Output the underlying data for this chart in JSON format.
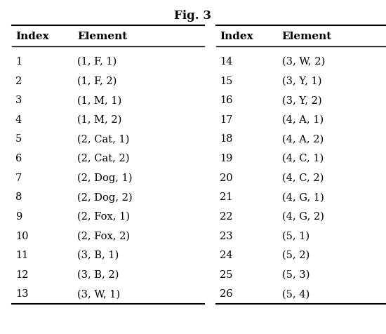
{
  "title": "Fig. 3",
  "col_headers": [
    "Index",
    "Element",
    "Index",
    "Element"
  ],
  "left_data": [
    [
      "1",
      "(1, F, 1)"
    ],
    [
      "2",
      "(1, F, 2)"
    ],
    [
      "3",
      "(1, M, 1)"
    ],
    [
      "4",
      "(1, M, 2)"
    ],
    [
      "5",
      "(2, Cat, 1)"
    ],
    [
      "6",
      "(2, Cat, 2)"
    ],
    [
      "7",
      "(2, Dog, 1)"
    ],
    [
      "8",
      "(2, Dog, 2)"
    ],
    [
      "9",
      "(2, Fox, 1)"
    ],
    [
      "10",
      "(2, Fox, 2)"
    ],
    [
      "11",
      "(3, B, 1)"
    ],
    [
      "12",
      "(3, B, 2)"
    ],
    [
      "13",
      "(3, W, 1)"
    ]
  ],
  "right_data": [
    [
      "14",
      "(3, W, 2)"
    ],
    [
      "15",
      "(3, Y, 1)"
    ],
    [
      "16",
      "(3, Y, 2)"
    ],
    [
      "17",
      "(4, A, 1)"
    ],
    [
      "18",
      "(4, A, 2)"
    ],
    [
      "19",
      "(4, C, 1)"
    ],
    [
      "20",
      "(4, C, 2)"
    ],
    [
      "21",
      "(4, G, 1)"
    ],
    [
      "22",
      "(4, G, 2)"
    ],
    [
      "23",
      "(5, 1)"
    ],
    [
      "24",
      "(5, 2)"
    ],
    [
      "25",
      "(5, 3)"
    ],
    [
      "26",
      "(5, 4)"
    ]
  ],
  "bg_color": "#ffffff",
  "text_color": "#000000",
  "header_fontsize": 11,
  "data_fontsize": 10.5,
  "title_fontsize": 12
}
